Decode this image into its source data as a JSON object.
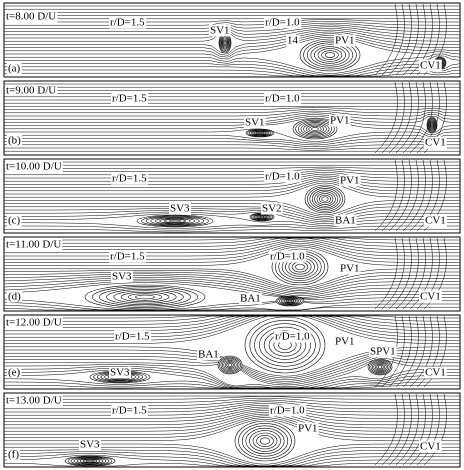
{
  "panels": [
    {
      "time": "t=8.00 D/U",
      "letter": "(a)",
      "radii": [
        "r/D=1.5",
        "r/D=1.0"
      ],
      "labels": [
        "SV1",
        "14",
        "PV1",
        "CV1"
      ]
    },
    {
      "time": "t=9.00 D/U",
      "letter": "(b)",
      "radii": [
        "r/D=1.5",
        "r/D=1.0"
      ],
      "labels": [
        "SV1",
        "PV1",
        "CV1"
      ]
    },
    {
      "time": "t=10.00 D/U",
      "letter": "(c)",
      "radii": [
        "r/D=1.5",
        "r/D=1.0"
      ],
      "labels": [
        "PV1",
        "SV3",
        "SV2",
        "BA1",
        "CV1"
      ]
    },
    {
      "time": "t=11.00 D/U",
      "letter": "(d)",
      "radii": [
        "r/D=1.5",
        "r/D=1.0"
      ],
      "labels": [
        "PV1",
        "SV3",
        "BA1",
        "CV1"
      ]
    },
    {
      "time": "t=12.00 D/U",
      "letter": "(e)",
      "radii": [
        "r/D=1.5",
        "r/D=1.0"
      ],
      "labels": [
        "PV1",
        "SPV1",
        "BA1",
        "SV3",
        "CV1"
      ]
    },
    {
      "time": "t=13.00 D/U",
      "letter": "(f)",
      "radii": [
        "r/D=1.5",
        "r/D=1.0"
      ],
      "labels": [
        "PV1",
        "SV3",
        "CV1"
      ]
    }
  ]
}
